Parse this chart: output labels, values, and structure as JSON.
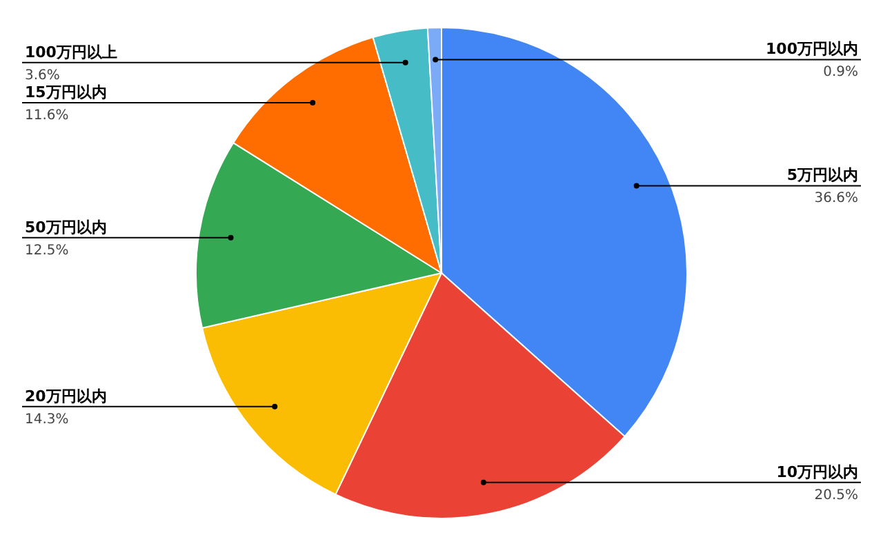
{
  "chart_data": {
    "type": "pie",
    "categories": [
      "5万円以内",
      "10万円以内",
      "20万円以内",
      "50万円以内",
      "15万円以内",
      "100万円以上",
      "100万円以内"
    ],
    "values": [
      36.6,
      20.5,
      14.3,
      12.5,
      11.6,
      3.6,
      0.9
    ],
    "colors": [
      "#4285f4",
      "#ea4335",
      "#fbbc04",
      "#34a853",
      "#ff6d01",
      "#46bdc6",
      "#7baaf7"
    ],
    "value_labels": [
      "36.6%",
      "20.5%",
      "14.3%",
      "12.5%",
      "11.6%",
      "3.6%",
      "0.9%"
    ]
  }
}
